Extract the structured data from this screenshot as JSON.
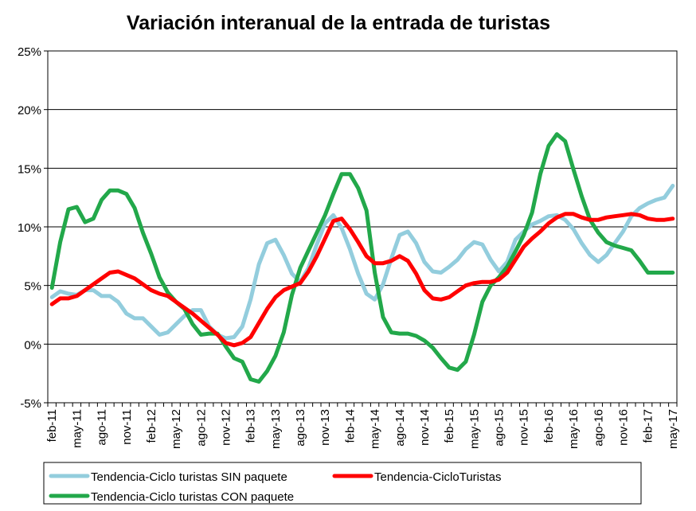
{
  "chart_data": {
    "type": "line",
    "title": "Variación interanual de la entrada de turistas",
    "xlabel": "",
    "ylabel": "",
    "ylim": [
      -5,
      25
    ],
    "yticks": [
      -5,
      0,
      5,
      10,
      15,
      20,
      25
    ],
    "ytick_labels": [
      "-5%",
      "0%",
      "5%",
      "10%",
      "15%",
      "20%",
      "25%"
    ],
    "grid": true,
    "legend_position": "bottom",
    "x_tick_labels": [
      "feb-11",
      "may-11",
      "ago-11",
      "nov-11",
      "feb-12",
      "may-12",
      "ago-12",
      "nov-12",
      "feb-13",
      "may-13",
      "ago-13",
      "nov-13",
      "feb-14",
      "may-14",
      "ago-14",
      "nov-14",
      "feb-15",
      "may-15",
      "ago-15",
      "nov-15",
      "feb-16",
      "may-16",
      "ago-16",
      "nov-16",
      "feb-17",
      "may-17"
    ],
    "x_months": [
      "feb-11",
      "mar-11",
      "abr-11",
      "may-11",
      "jun-11",
      "jul-11",
      "ago-11",
      "sep-11",
      "oct-11",
      "nov-11",
      "dic-11",
      "ene-12",
      "feb-12",
      "mar-12",
      "abr-12",
      "may-12",
      "jun-12",
      "jul-12",
      "ago-12",
      "sep-12",
      "oct-12",
      "nov-12",
      "dic-12",
      "ene-13",
      "feb-13",
      "mar-13",
      "abr-13",
      "may-13",
      "jun-13",
      "jul-13",
      "ago-13",
      "sep-13",
      "oct-13",
      "nov-13",
      "dic-13",
      "ene-14",
      "feb-14",
      "mar-14",
      "abr-14",
      "may-14",
      "jun-14",
      "jul-14",
      "ago-14",
      "sep-14",
      "oct-14",
      "nov-14",
      "dic-14",
      "ene-15",
      "feb-15",
      "mar-15",
      "abr-15",
      "may-15",
      "jun-15",
      "jul-15",
      "ago-15",
      "sep-15",
      "oct-15",
      "nov-15",
      "dic-15",
      "ene-16",
      "feb-16",
      "mar-16",
      "abr-16",
      "may-16",
      "jun-16",
      "jul-16",
      "ago-16",
      "sep-16",
      "oct-16",
      "nov-16",
      "dic-16",
      "ene-17",
      "feb-17",
      "mar-17",
      "abr-17",
      "may-17"
    ],
    "series": [
      {
        "name": "Tendencia-Ciclo turistas SIN paquete",
        "color": "#93cddd",
        "values": [
          4.0,
          4.5,
          4.3,
          4.2,
          4.6,
          4.6,
          4.1,
          4.1,
          3.6,
          2.6,
          2.2,
          2.2,
          1.5,
          0.8,
          1.0,
          1.7,
          2.4,
          2.9,
          2.9,
          1.5,
          0.8,
          0.5,
          0.6,
          1.5,
          3.8,
          6.8,
          8.6,
          8.9,
          7.6,
          6.0,
          5.3,
          6.5,
          8.5,
          10.3,
          11.0,
          9.9,
          8.1,
          6.0,
          4.3,
          3.8,
          5.1,
          7.3,
          9.3,
          9.6,
          8.6,
          7.0,
          6.2,
          6.1,
          6.6,
          7.2,
          8.1,
          8.7,
          8.5,
          7.2,
          6.2,
          7.0,
          8.9,
          9.6,
          10.2,
          10.5,
          10.9,
          11.0,
          10.6,
          9.8,
          8.6,
          7.6,
          7.0,
          7.6,
          8.6,
          9.6,
          10.9,
          11.6,
          12.0,
          12.3,
          12.5,
          13.5
        ]
      },
      {
        "name": "Tendencia-CicloTuristas",
        "color": "#ff0000",
        "values": [
          3.4,
          3.9,
          3.9,
          4.1,
          4.6,
          5.1,
          5.6,
          6.1,
          6.2,
          5.9,
          5.6,
          5.1,
          4.6,
          4.3,
          4.1,
          3.6,
          3.1,
          2.6,
          2.0,
          1.4,
          0.8,
          0.1,
          -0.1,
          0.1,
          0.6,
          1.8,
          3.0,
          4.0,
          4.6,
          4.9,
          5.2,
          6.2,
          7.5,
          9.0,
          10.5,
          10.7,
          9.8,
          8.7,
          7.5,
          6.9,
          6.9,
          7.1,
          7.5,
          7.1,
          6.0,
          4.6,
          3.9,
          3.8,
          4.0,
          4.5,
          5.0,
          5.2,
          5.3,
          5.3,
          5.5,
          6.1,
          7.2,
          8.3,
          9.0,
          9.6,
          10.3,
          10.8,
          11.1,
          11.1,
          10.8,
          10.6,
          10.6,
          10.8,
          10.9,
          11.0,
          11.1,
          11.0,
          10.7,
          10.6,
          10.6,
          10.7
        ]
      },
      {
        "name": "Tendencia-Ciclo turistas CON paquete",
        "color": "#22a84a",
        "values": [
          4.8,
          8.7,
          11.5,
          11.7,
          10.4,
          10.7,
          12.3,
          13.1,
          13.1,
          12.8,
          11.6,
          9.5,
          7.7,
          5.7,
          4.4,
          3.6,
          3.0,
          1.7,
          0.8,
          0.9,
          0.9,
          -0.2,
          -1.2,
          -1.5,
          -3.0,
          -3.2,
          -2.3,
          -1.0,
          1.0,
          4.2,
          6.5,
          8.0,
          9.5,
          11.0,
          12.8,
          14.5,
          14.5,
          13.3,
          11.4,
          6.1,
          2.3,
          1.0,
          0.9,
          0.9,
          0.7,
          0.3,
          -0.3,
          -1.2,
          -2.0,
          -2.2,
          -1.5,
          0.8,
          3.6,
          5.0,
          5.7,
          6.6,
          7.9,
          9.3,
          11.2,
          14.5,
          16.9,
          17.9,
          17.3,
          14.9,
          12.6,
          10.6,
          9.5,
          8.7,
          8.4,
          8.2,
          8.0,
          7.1,
          6.1,
          6.1,
          6.1,
          6.1
        ]
      }
    ]
  }
}
